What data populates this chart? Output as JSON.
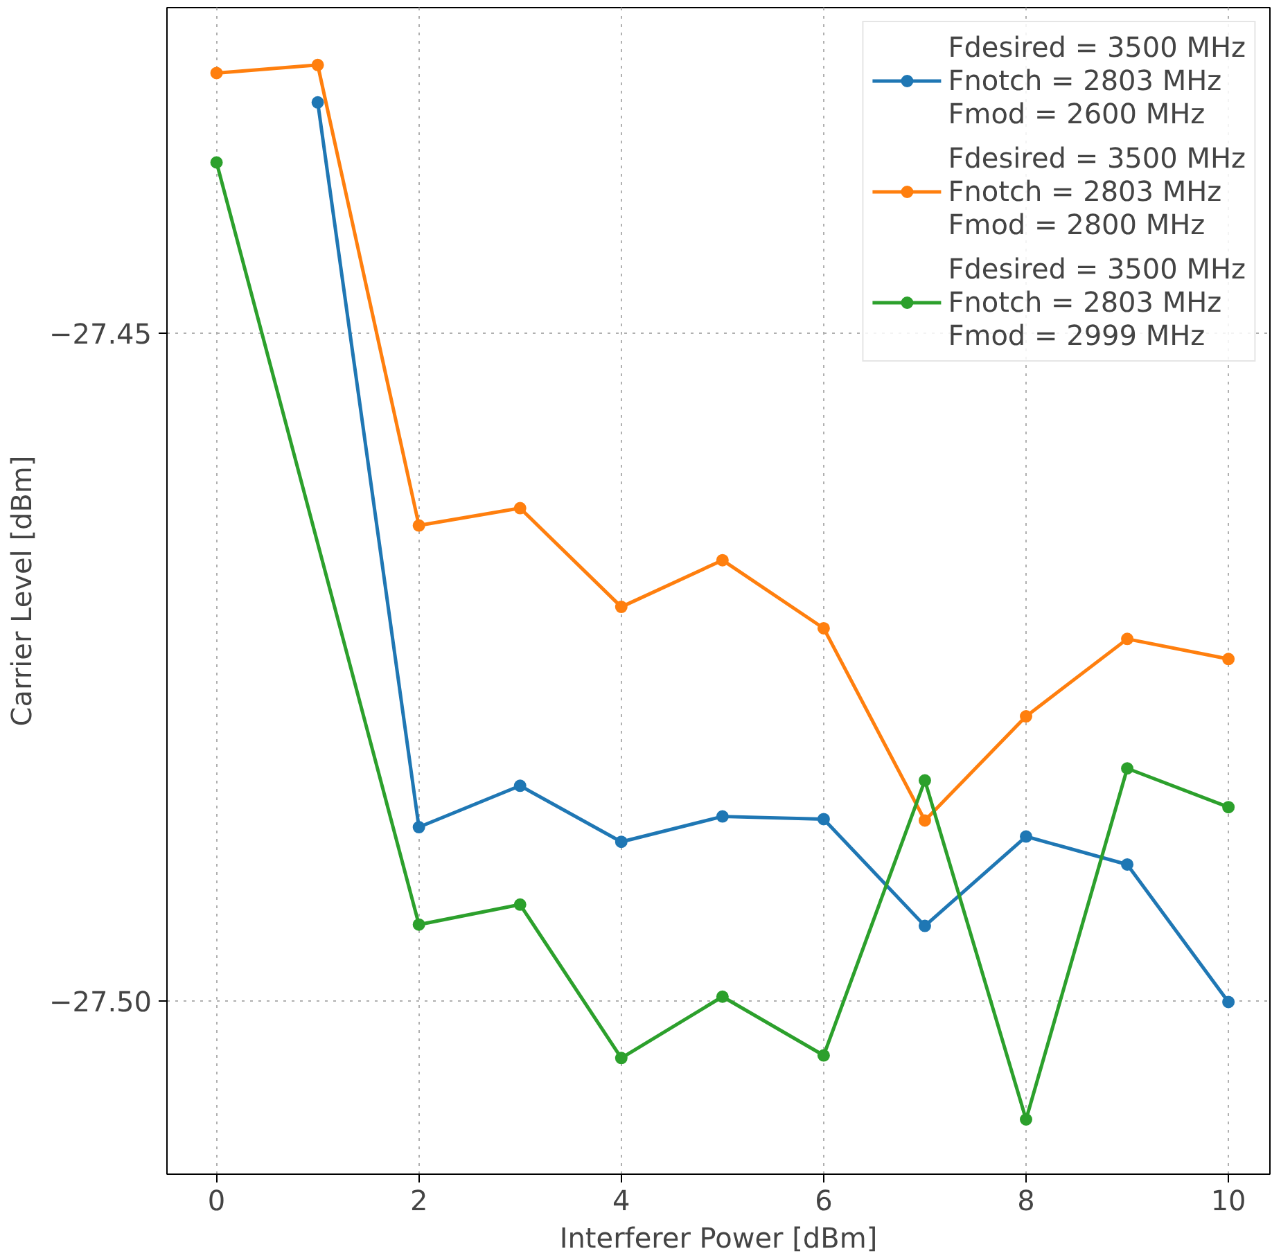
{
  "chart_data": {
    "type": "line",
    "xlabel": "Interferer Power [dBm]",
    "ylabel": "Carrier Level [dBm]",
    "xlim": [
      -0.49,
      10.41
    ],
    "ylim": [
      -27.513,
      -27.4256
    ],
    "xticks": [
      0,
      2,
      4,
      6,
      8,
      10
    ],
    "yticks": [
      {
        "value": -27.5,
        "label": "−27.50"
      },
      {
        "value": -27.45,
        "label": "−27.45"
      }
    ],
    "grid": true,
    "legend": "top right",
    "marker": "circle",
    "line_style": "solid",
    "series": [
      {
        "name": "Fdesired = 3500 MHz\nFnotch = 2803 MHz\nFmod = 2600 MHz",
        "color": "#1f77b4",
        "x": [
          1,
          2,
          3,
          4,
          5,
          6,
          7,
          8,
          9,
          10
        ],
        "values": [
          -27.4327,
          -27.487,
          -27.4839,
          -27.4881,
          -27.4862,
          -27.4864,
          -27.4944,
          -27.4877,
          -27.4898,
          -27.5001
        ]
      },
      {
        "name": "Fdesired = 3500 MHz\nFnotch = 2803 MHz\nFmod = 2800 MHz",
        "color": "#ff7f0e",
        "x": [
          0,
          1,
          2,
          3,
          4,
          5,
          6,
          7,
          8,
          9,
          10
        ],
        "values": [
          -27.4305,
          -27.4299,
          -27.4644,
          -27.4631,
          -27.4705,
          -27.467,
          -27.4721,
          -27.4865,
          -27.4787,
          -27.4729,
          -27.4744
        ]
      },
      {
        "name": "Fdesired = 3500 MHz\nFnotch = 2803 MHz\nFmod = 2999 MHz",
        "color": "#2ca02c",
        "x": [
          0,
          2,
          3,
          4,
          5,
          6,
          7,
          8,
          9,
          10
        ],
        "values": [
          -27.4372,
          -27.4943,
          -27.4928,
          -27.5043,
          -27.4997,
          -27.5041,
          -27.4835,
          -27.5089,
          -27.4826,
          -27.4855
        ]
      }
    ]
  }
}
